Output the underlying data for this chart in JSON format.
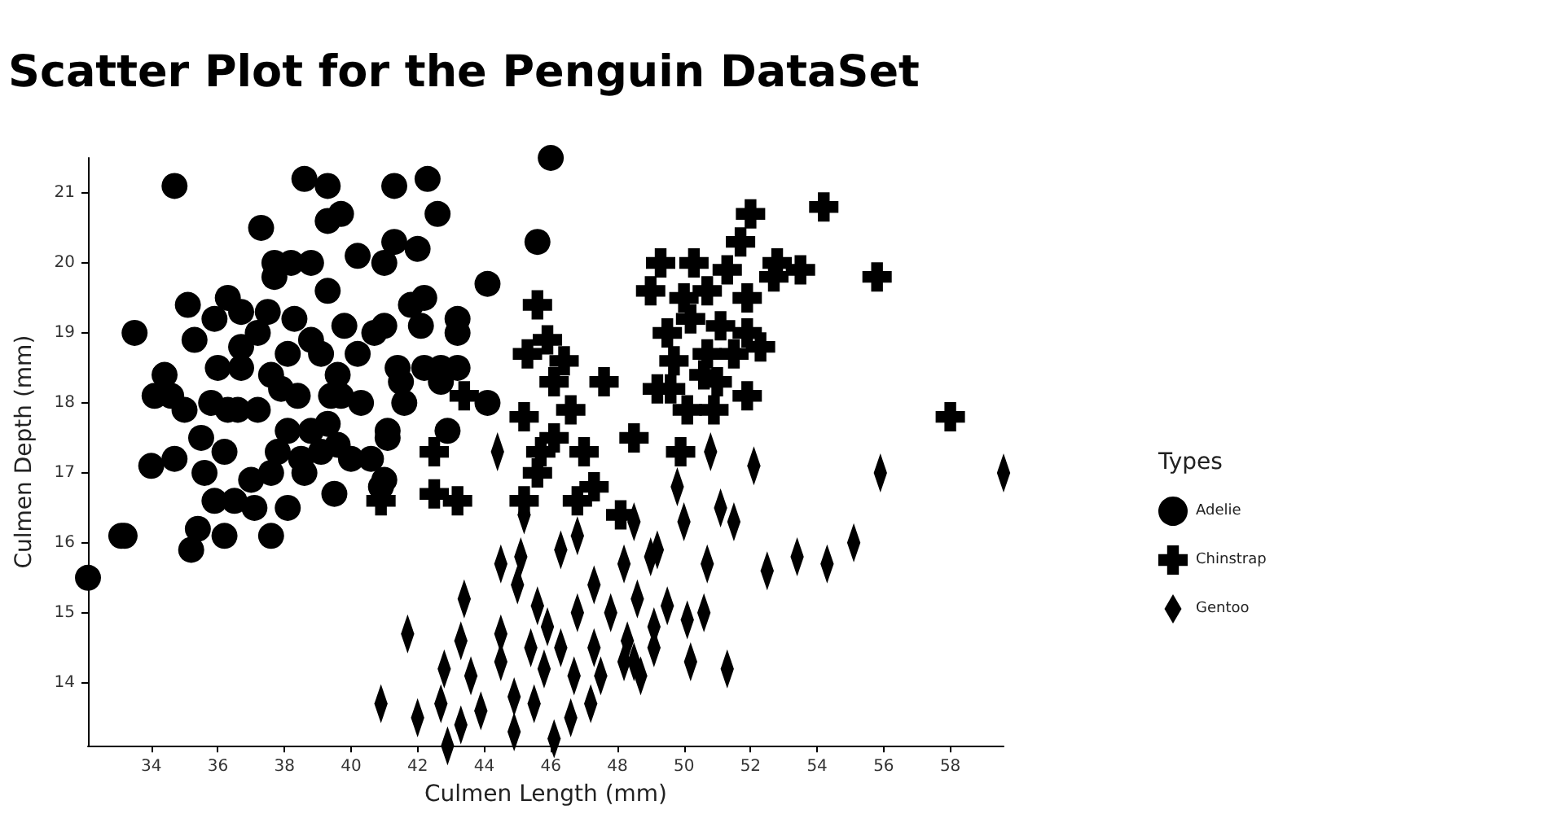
{
  "chart_data": {
    "type": "scatter",
    "title": "Scatter Plot for the Penguin DataSet",
    "xlabel": "Culmen Length (mm)",
    "ylabel": "Culmen Depth (mm)",
    "legend_title": "Types",
    "legend": "right",
    "grid": false,
    "xlim": [
      32.1,
      59.6
    ],
    "xticks": [
      34,
      36,
      38,
      40,
      42,
      44,
      46,
      48,
      50,
      52,
      54,
      56,
      58
    ],
    "ylim": [
      13.1,
      21.5
    ],
    "yticks": [
      14,
      15,
      16,
      17,
      18,
      19,
      20,
      21
    ],
    "series": [
      {
        "name": "Adelie",
        "color": "#000000",
        "marker": "circle",
        "x": [
          32.1,
          33.1,
          34.7,
          33.5,
          33.2,
          35.1,
          35.3,
          35.9,
          36.3,
          36.7,
          34.4,
          34.1,
          34.6,
          35.0,
          34.0,
          34.7,
          35.5,
          36.0,
          35.8,
          36.3,
          36.7,
          36.7,
          36.6,
          37.2,
          37.3,
          37.2,
          37.5,
          37.7,
          37.7,
          38.2,
          38.8,
          38.6,
          39.3,
          39.3,
          39.7,
          38.3,
          38.1,
          37.6,
          37.9,
          38.4,
          38.8,
          39.1,
          39.3,
          39.4,
          39.6,
          39.8,
          40.2,
          40.2,
          40.7,
          41.0,
          41.3,
          41.3,
          42.0,
          42.3,
          42.6,
          41.8,
          42.2,
          42.1,
          41.0,
          41.4,
          41.5,
          42.2,
          42.7,
          43.2,
          42.7,
          43.2,
          43.2,
          41.6,
          42.9,
          41.1,
          41.1,
          40.3,
          39.7,
          39.3,
          39.6,
          38.8,
          38.1,
          37.8,
          37.6,
          38.5,
          39.1,
          40.0,
          40.6,
          41.0,
          38.6,
          37.0,
          36.5,
          35.9,
          35.6,
          36.2,
          37.1,
          38.1,
          39.5,
          40.9,
          35.4,
          36.2,
          37.6,
          35.2,
          44.1,
          44.1,
          46.0,
          45.6
        ],
        "values": [
          15.5,
          16.1,
          21.1,
          19.0,
          16.1,
          19.4,
          18.9,
          19.2,
          19.5,
          19.3,
          18.4,
          18.1,
          18.1,
          17.9,
          17.1,
          17.2,
          17.5,
          18.5,
          18.0,
          17.9,
          18.8,
          18.5,
          17.9,
          17.9,
          20.5,
          19.0,
          19.3,
          19.8,
          20.0,
          20.0,
          20.0,
          21.2,
          21.1,
          20.6,
          20.7,
          19.2,
          18.7,
          18.4,
          18.2,
          18.1,
          18.9,
          18.7,
          19.6,
          18.1,
          18.4,
          19.1,
          18.7,
          20.1,
          19.0,
          20.0,
          20.3,
          21.1,
          20.2,
          21.2,
          20.7,
          19.4,
          19.5,
          19.1,
          19.1,
          18.5,
          18.3,
          18.5,
          18.5,
          18.5,
          18.3,
          19.2,
          19.0,
          18.0,
          17.6,
          17.6,
          17.5,
          18.0,
          18.1,
          17.7,
          17.4,
          17.6,
          17.6,
          17.3,
          17.0,
          17.2,
          17.3,
          17.2,
          17.2,
          16.9,
          17.0,
          16.9,
          16.6,
          16.6,
          17.0,
          17.3,
          16.5,
          16.5,
          16.7,
          16.8,
          16.2,
          16.1,
          16.1,
          15.9,
          19.7,
          18.0,
          21.5,
          20.3
        ]
      },
      {
        "name": "Chinstrap",
        "color": "#000000",
        "marker": "cross",
        "x": [
          52.0,
          54.2,
          51.7,
          52.8,
          53.5,
          52.7,
          55.8,
          51.3,
          50.3,
          49.3,
          49.0,
          50.0,
          50.7,
          51.9,
          49.5,
          50.2,
          51.1,
          51.9,
          52.3,
          50.7,
          51.5,
          49.7,
          50.6,
          49.2,
          49.6,
          51.0,
          51.9,
          50.1,
          50.9,
          58.0,
          49.9,
          48.5,
          47.6,
          46.4,
          45.6,
          45.9,
          45.3,
          46.1,
          46.6,
          45.2,
          46.1,
          47.0,
          45.7,
          45.6,
          46.8,
          45.2,
          42.5,
          42.5,
          43.2,
          43.4,
          40.9,
          47.3,
          48.1
        ],
        "values": [
          20.7,
          20.8,
          20.3,
          20.0,
          19.9,
          19.8,
          19.8,
          19.9,
          20.0,
          20.0,
          19.6,
          19.5,
          19.6,
          19.5,
          19.0,
          19.2,
          19.1,
          19.0,
          18.8,
          18.7,
          18.7,
          18.6,
          18.4,
          18.2,
          18.2,
          18.3,
          18.1,
          17.9,
          17.9,
          17.8,
          17.3,
          17.5,
          18.3,
          18.6,
          19.4,
          18.9,
          18.7,
          18.3,
          17.9,
          17.8,
          17.5,
          17.3,
          17.3,
          17.0,
          16.6,
          16.6,
          17.3,
          16.7,
          16.6,
          18.1,
          16.6,
          16.8,
          16.4
        ]
      },
      {
        "name": "Gentoo",
        "color": "#000000",
        "marker": "diamond",
        "x": [
          59.6,
          55.9,
          52.1,
          50.8,
          44.4,
          49.8,
          45.2,
          46.8,
          51.1,
          51.5,
          50.0,
          48.5,
          55.1,
          53.4,
          54.3,
          52.5,
          50.7,
          49.2,
          49.0,
          48.2,
          46.3,
          44.5,
          45.1,
          45.0,
          47.3,
          43.4,
          41.7,
          44.5,
          45.9,
          45.6,
          46.8,
          47.8,
          48.6,
          49.5,
          50.6,
          50.1,
          49.1,
          48.3,
          47.3,
          46.3,
          45.4,
          44.5,
          43.3,
          42.8,
          43.6,
          43.9,
          42.7,
          42.0,
          40.9,
          42.9,
          43.3,
          44.9,
          44.9,
          45.5,
          46.1,
          46.6,
          47.2,
          47.5,
          46.7,
          45.8,
          48.5,
          48.7,
          49.1,
          50.2,
          51.3,
          48.2
        ],
        "values": [
          17.0,
          17.0,
          17.1,
          17.3,
          17.3,
          16.8,
          16.4,
          16.1,
          16.5,
          16.3,
          16.3,
          16.3,
          16.0,
          15.8,
          15.7,
          15.6,
          15.7,
          15.9,
          15.8,
          15.7,
          15.9,
          15.7,
          15.8,
          15.4,
          15.4,
          15.2,
          14.7,
          14.7,
          14.8,
          15.1,
          15.0,
          15.0,
          15.2,
          15.1,
          15.0,
          14.9,
          14.8,
          14.6,
          14.5,
          14.5,
          14.5,
          14.3,
          14.6,
          14.2,
          14.1,
          13.6,
          13.7,
          13.5,
          13.7,
          13.1,
          13.4,
          13.3,
          13.8,
          13.7,
          13.2,
          13.5,
          13.7,
          14.1,
          14.1,
          14.2,
          14.3,
          14.1,
          14.5,
          14.3,
          14.2,
          14.3
        ]
      }
    ]
  }
}
